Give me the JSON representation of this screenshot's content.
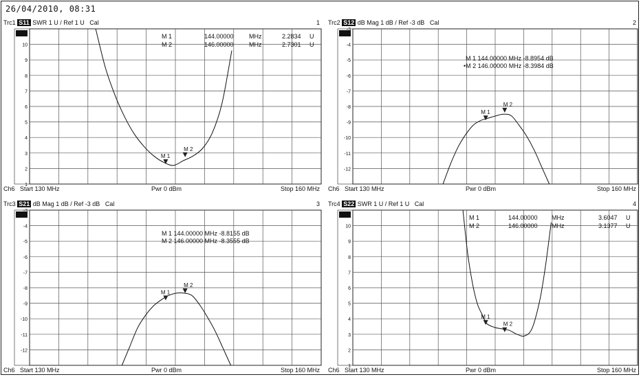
{
  "timestamp": "26/04/2010, 08:31",
  "panels": [
    {
      "trace": "Trc1",
      "param": "S11",
      "format": "SWR",
      "scale": "1 U / Ref 1 U",
      "cal": "Cal",
      "number": "1",
      "footer": {
        "channel": "Ch6",
        "start": "Start  130 MHz",
        "power": "Pwr  0 dBm",
        "stop": "Stop  160 MHz"
      },
      "markers": [
        {
          "label": "M 1",
          "freq": "144.00000",
          "unit": "MHz",
          "value": "2.2834",
          "vunit": "U"
        },
        {
          "label": "M 2",
          "freq": "146.00000",
          "unit": "MHz",
          "value": "2.7301",
          "vunit": "U"
        }
      ]
    },
    {
      "trace": "Trc2",
      "param": "S12",
      "format": "dB Mag",
      "scale": "1 dB / Ref -3 dB",
      "cal": "Cal",
      "number": "2",
      "footer": {
        "channel": "Ch6",
        "start": "Start  130 MHz",
        "power": "Pwr  0 dBm",
        "stop": "Stop  160 MHz"
      },
      "markers": [
        {
          "text": "M 1  144.00000 MHz  -8.8954 dB"
        },
        {
          "text": "•M 2  146.00000 MHz  -8.3984 dB"
        }
      ]
    },
    {
      "trace": "Trc3",
      "param": "S21",
      "format": "dB Mag",
      "scale": "1 dB / Ref -3 dB",
      "cal": "Cal",
      "number": "3",
      "footer": {
        "channel": "Ch6",
        "start": "Start  130 MHz",
        "power": "Pwr  0 dBm",
        "stop": "Stop  160 MHz"
      },
      "markers": [
        {
          "text": "M 1  144.00000 MHz  -8.8155 dB"
        },
        {
          "text": "M 2  146.00000 MHz  -8.3555 dB"
        }
      ]
    },
    {
      "trace": "Trc4",
      "param": "S22",
      "format": "SWR",
      "scale": "1 U / Ref 1 U",
      "cal": "Cal",
      "number": "4",
      "footer": {
        "channel": "Ch6",
        "start": "Start  130 MHz",
        "power": "Pwr  0 dBm",
        "stop": "Stop  160 MHz"
      },
      "markers": [
        {
          "label": "M 1",
          "freq": "144.00000",
          "unit": "MHz",
          "value": "3.6047",
          "vunit": "U"
        },
        {
          "label": "M 2",
          "freq": "146.00000",
          "unit": "MHz",
          "value": "3.1377",
          "vunit": "U"
        }
      ]
    }
  ],
  "chart_data": [
    {
      "type": "line",
      "title": "Trc1 S11 SWR 1 U / Ref 1 U",
      "x_unit": "MHz",
      "xlim": [
        130,
        160
      ],
      "ylim": [
        1,
        11
      ],
      "y_ticks": [
        1,
        2,
        3,
        4,
        5,
        6,
        7,
        8,
        9,
        10
      ],
      "series": [
        {
          "x": [
            136.8,
            137.8,
            138.8,
            139.8,
            140.8,
            141.8,
            142.8,
            143.8,
            144.8,
            145.8,
            146.8,
            147.8,
            148.8,
            149.8,
            150.8
          ],
          "y": [
            11,
            8.5,
            6.7,
            5.3,
            4.2,
            3.4,
            2.8,
            2.4,
            2.2,
            2.5,
            2.8,
            3.3,
            4.3,
            6.2,
            9.6
          ]
        }
      ],
      "markers": [
        {
          "label": "M 1",
          "x": 144.0,
          "y": 2.2834
        },
        {
          "label": "M 2",
          "x": 146.0,
          "y": 2.7301
        }
      ]
    },
    {
      "type": "line",
      "title": "Trc2 S12 dB Mag 1 dB / Ref -3 dB",
      "x_unit": "MHz",
      "xlim": [
        130,
        160
      ],
      "ylim": [
        -13,
        -3
      ],
      "y_ticks": [
        -3,
        -4,
        -5,
        -6,
        -7,
        -8,
        -9,
        -10,
        -11,
        -12
      ],
      "series": [
        {
          "x": [
            139.5,
            140.3,
            141.1,
            141.9,
            142.7,
            143.5,
            144.3,
            145.1,
            145.9,
            146.7,
            147.5,
            148.3,
            149.1,
            149.9,
            150.7
          ],
          "y": [
            -13.1,
            -11.7,
            -10.6,
            -9.8,
            -9.2,
            -8.9,
            -8.75,
            -8.6,
            -8.5,
            -8.6,
            -9.2,
            -9.9,
            -10.8,
            -11.9,
            -13.1
          ]
        }
      ],
      "markers": [
        {
          "label": "M 1",
          "x": 144.0,
          "y": -8.8954
        },
        {
          "label": "M 2",
          "x": 146.0,
          "y": -8.3984
        }
      ]
    },
    {
      "type": "line",
      "title": "Trc3 S21 dB Mag 1 dB / Ref -3 dB",
      "x_unit": "MHz",
      "xlim": [
        130,
        160
      ],
      "ylim": [
        -13,
        -3
      ],
      "y_ticks": [
        -3,
        -4,
        -5,
        -6,
        -7,
        -8,
        -9,
        -10,
        -11,
        -12
      ],
      "series": [
        {
          "x": [
            139.5,
            140.3,
            141.1,
            141.9,
            142.7,
            143.5,
            144.3,
            145.1,
            145.9,
            146.7,
            147.5,
            148.3,
            149.1,
            149.9,
            150.7
          ],
          "y": [
            -13.1,
            -11.8,
            -10.6,
            -9.8,
            -9.2,
            -8.8,
            -8.5,
            -8.35,
            -8.35,
            -8.5,
            -9.1,
            -9.9,
            -10.8,
            -11.9,
            -13.1
          ]
        }
      ],
      "markers": [
        {
          "label": "M 1",
          "x": 144.0,
          "y": -8.8155
        },
        {
          "label": "M 2",
          "x": 146.0,
          "y": -8.3555
        }
      ]
    },
    {
      "type": "line",
      "title": "Trc4 S22 SWR 1 U / Ref 1 U",
      "x_unit": "MHz",
      "xlim": [
        130,
        160
      ],
      "ylim": [
        1,
        11
      ],
      "y_ticks": [
        1,
        2,
        3,
        4,
        5,
        6,
        7,
        8,
        9,
        10
      ],
      "series": [
        {
          "x": [
            141.6,
            142.1,
            142.6,
            143.1,
            143.6,
            144.1,
            144.9,
            145.7,
            146.5,
            147.3,
            148.1,
            148.9,
            149.7,
            150.3,
            150.9
          ],
          "y": [
            11,
            8.2,
            6.3,
            5.0,
            4.3,
            3.7,
            3.45,
            3.35,
            3.25,
            3.0,
            2.9,
            3.4,
            5.2,
            7.4,
            10.2
          ]
        }
      ],
      "markers": [
        {
          "label": "M 1",
          "x": 144.0,
          "y": 3.6047
        },
        {
          "label": "M 2",
          "x": 146.0,
          "y": 3.1377
        }
      ]
    }
  ]
}
